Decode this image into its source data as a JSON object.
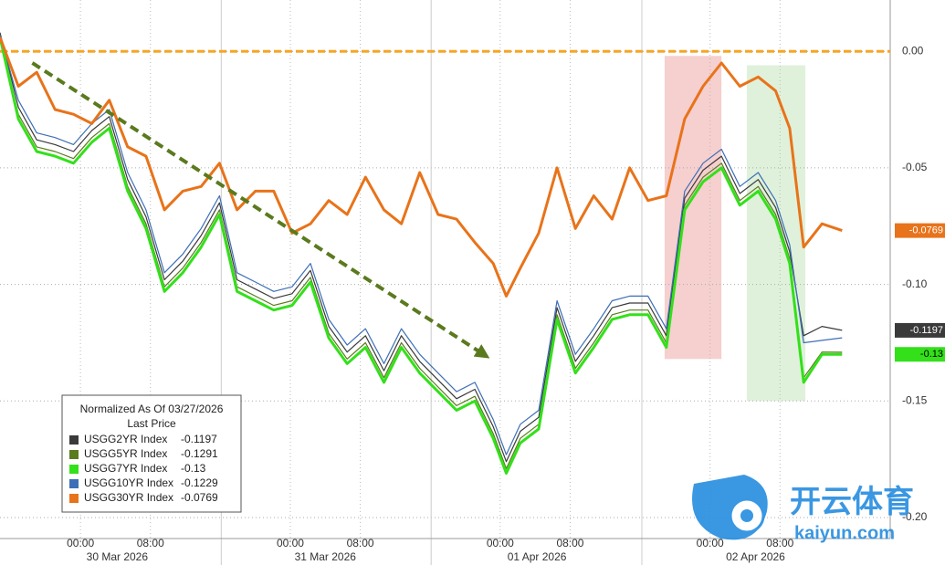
{
  "chart_data": {
    "type": "line",
    "x": [
      -9.2,
      -7.1,
      -5.0,
      -2.9,
      -0.8,
      1.3,
      3.3,
      5.4,
      7.5,
      9.6,
      11.7,
      13.8,
      15.9,
      17.9,
      20.0,
      22.1,
      24.2,
      26.3,
      28.4,
      30.5,
      32.6,
      34.7,
      36.7,
      38.8,
      40.9,
      43.0,
      45.1,
      47.2,
      48.7,
      50.3,
      52.4,
      54.5,
      56.6,
      58.7,
      60.8,
      62.8,
      64.9,
      67.0,
      69.1,
      71.2,
      73.3,
      75.4,
      77.5,
      79.5,
      81.1,
      82.7,
      84.8,
      87.1
    ],
    "xlim": [
      -9.2,
      92.6
    ],
    "xticks": [
      {
        "value": 0,
        "label": "00:00"
      },
      {
        "value": 8,
        "label": "08:00"
      },
      {
        "value": 24,
        "label": "00:00"
      },
      {
        "value": 32,
        "label": "08:00"
      },
      {
        "value": 48,
        "label": "00:00"
      },
      {
        "value": 56,
        "label": "08:00"
      },
      {
        "value": 72,
        "label": "00:00"
      },
      {
        "value": 80,
        "label": "08:00"
      }
    ],
    "date_labels": [
      {
        "value": 4.2,
        "label": "30 Mar 2026"
      },
      {
        "value": 28.0,
        "label": "31 Mar 2026"
      },
      {
        "value": 52.2,
        "label": "01 Apr 2026"
      },
      {
        "value": 77.2,
        "label": "02 Apr 2026"
      }
    ],
    "separators": [
      16.1,
      40.1,
      64.2
    ],
    "ylim": [
      -0.209,
      0.022
    ],
    "yticks": [
      {
        "value": 0,
        "label": "0.00"
      },
      -0.05,
      {
        "value": -0.1,
        "label": "-0.10"
      },
      -0.15,
      {
        "value": -0.2,
        "label": "-0.20"
      }
    ],
    "grid": true,
    "reference_line": {
      "value": 0,
      "color": "#f5a623"
    },
    "highlights": [
      {
        "x": [
          66.8,
          73.3
        ],
        "y": [
          -0.002,
          -0.132
        ],
        "color": "#f4c7c7"
      },
      {
        "x": [
          76.2,
          82.9
        ],
        "y": [
          -0.006,
          -0.15
        ],
        "color": "#d9efd4"
      }
    ],
    "trend_arrow": {
      "x": [
        -5.5,
        46.1
      ],
      "y": [
        -0.005,
        -0.13
      ],
      "color": "#5a7a1e"
    },
    "legend_title": "Normalized As Of 03/27/2026",
    "legend_subtitle": "Last Price",
    "legend_position": "lower-left",
    "series": [
      {
        "name": "USGG2YR Index",
        "color": "#3a3a3a",
        "width": 1.2,
        "tag": true,
        "tag_text": "#fff",
        "values": [
          0.008,
          -0.024,
          -0.038,
          -0.04,
          -0.043,
          -0.034,
          -0.028,
          -0.055,
          -0.071,
          -0.098,
          -0.09,
          -0.079,
          -0.065,
          -0.098,
          -0.102,
          -0.106,
          -0.104,
          -0.094,
          -0.118,
          -0.129,
          -0.122,
          -0.137,
          -0.122,
          -0.133,
          -0.141,
          -0.149,
          -0.145,
          -0.161,
          -0.176,
          -0.163,
          -0.157,
          -0.11,
          -0.133,
          -0.122,
          -0.11,
          -0.108,
          -0.108,
          -0.122,
          -0.063,
          -0.051,
          -0.045,
          -0.061,
          -0.055,
          -0.067,
          -0.086,
          -0.122,
          -0.118,
          -0.1197
        ]
      },
      {
        "name": "USGG5YR Index",
        "color": "#5a7a1e",
        "width": 1.2,
        "tag": false,
        "tag_text": "#fff",
        "values": [
          0.006,
          -0.027,
          -0.041,
          -0.043,
          -0.046,
          -0.037,
          -0.031,
          -0.058,
          -0.074,
          -0.101,
          -0.093,
          -0.082,
          -0.068,
          -0.101,
          -0.105,
          -0.109,
          -0.107,
          -0.097,
          -0.121,
          -0.132,
          -0.125,
          -0.14,
          -0.125,
          -0.136,
          -0.144,
          -0.152,
          -0.148,
          -0.164,
          -0.179,
          -0.166,
          -0.16,
          -0.113,
          -0.136,
          -0.125,
          -0.113,
          -0.111,
          -0.111,
          -0.125,
          -0.066,
          -0.054,
          -0.048,
          -0.064,
          -0.058,
          -0.07,
          -0.089,
          -0.14,
          -0.129,
          -0.1291
        ]
      },
      {
        "name": "USGG10YR Index",
        "color": "#3d6fb6",
        "width": 1.2,
        "tag": false,
        "tag_text": "#fff",
        "values": [
          0.007,
          -0.021,
          -0.035,
          -0.037,
          -0.04,
          -0.031,
          -0.025,
          -0.052,
          -0.068,
          -0.095,
          -0.087,
          -0.076,
          -0.062,
          -0.095,
          -0.099,
          -0.103,
          -0.101,
          -0.091,
          -0.115,
          -0.126,
          -0.119,
          -0.134,
          -0.119,
          -0.13,
          -0.138,
          -0.146,
          -0.142,
          -0.158,
          -0.173,
          -0.16,
          -0.154,
          -0.107,
          -0.13,
          -0.119,
          -0.107,
          -0.105,
          -0.105,
          -0.119,
          -0.06,
          -0.048,
          -0.042,
          -0.058,
          -0.052,
          -0.064,
          -0.083,
          -0.125,
          -0.124,
          -0.1229
        ]
      },
      {
        "name": "USGG7YR Index",
        "color": "#33e01a",
        "width": 3,
        "tag": true,
        "tag_text": "#000",
        "values": [
          0.006,
          -0.029,
          -0.043,
          -0.045,
          -0.048,
          -0.039,
          -0.033,
          -0.06,
          -0.076,
          -0.103,
          -0.095,
          -0.084,
          -0.07,
          -0.103,
          -0.107,
          -0.111,
          -0.109,
          -0.099,
          -0.123,
          -0.134,
          -0.127,
          -0.142,
          -0.127,
          -0.138,
          -0.146,
          -0.154,
          -0.15,
          -0.166,
          -0.181,
          -0.168,
          -0.162,
          -0.115,
          -0.138,
          -0.127,
          -0.115,
          -0.113,
          -0.113,
          -0.127,
          -0.068,
          -0.056,
          -0.05,
          -0.066,
          -0.06,
          -0.072,
          -0.091,
          -0.142,
          -0.13,
          -0.13
        ]
      },
      {
        "name": "USGG30YR Index",
        "color": "#e8731a",
        "width": 3,
        "tag": true,
        "tag_text": "#fff",
        "values": [
          0.006,
          -0.015,
          -0.009,
          -0.025,
          -0.027,
          -0.031,
          -0.021,
          -0.041,
          -0.045,
          -0.068,
          -0.06,
          -0.058,
          -0.048,
          -0.068,
          -0.06,
          -0.06,
          -0.078,
          -0.074,
          -0.064,
          -0.07,
          -0.054,
          -0.068,
          -0.074,
          -0.052,
          -0.07,
          -0.072,
          -0.082,
          -0.091,
          -0.105,
          -0.093,
          -0.078,
          -0.05,
          -0.076,
          -0.062,
          -0.072,
          -0.05,
          -0.064,
          -0.062,
          -0.029,
          -0.015,
          -0.005,
          -0.015,
          -0.011,
          -0.017,
          -0.033,
          -0.084,
          -0.074,
          -0.0769
        ]
      }
    ],
    "legend_order": [
      0,
      1,
      3,
      2,
      4
    ],
    "watermark": {
      "title": "开云体育",
      "url": "kaiyun.com"
    }
  }
}
